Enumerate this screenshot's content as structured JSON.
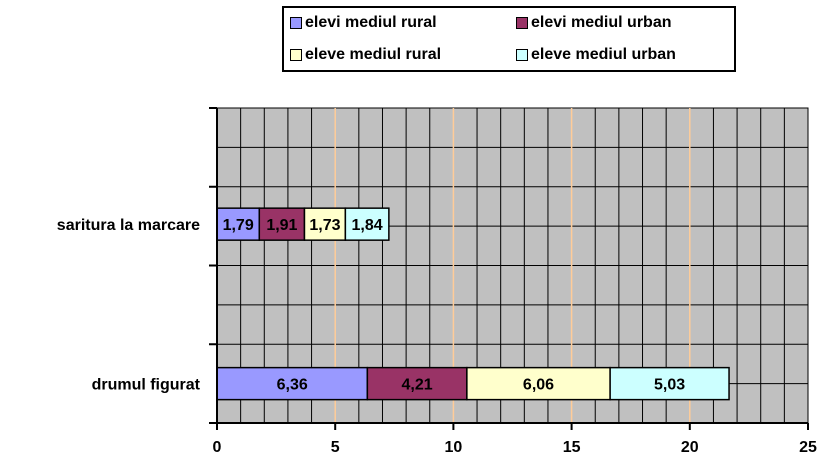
{
  "chart_data": {
    "type": "bar",
    "orientation": "horizontal",
    "stacked": true,
    "categories": [
      "saritura la marcare",
      "drumul figurat"
    ],
    "series": [
      {
        "name": "elevi mediul rural",
        "color": "#9999ff",
        "values": [
          1.79,
          6.36
        ],
        "labels": [
          "1,79",
          "6,36"
        ]
      },
      {
        "name": "elevi mediul urban",
        "color": "#993366",
        "values": [
          1.91,
          4.21
        ],
        "labels": [
          "1,91",
          "4,21"
        ]
      },
      {
        "name": "eleve mediul rural",
        "color": "#ffffcc",
        "values": [
          1.73,
          6.06
        ],
        "labels": [
          "1,73",
          "6,06"
        ]
      },
      {
        "name": "eleve mediul urban",
        "color": "#ccffff",
        "values": [
          1.84,
          5.03
        ],
        "labels": [
          "1,84",
          "5,03"
        ]
      }
    ],
    "xlim": [
      0,
      25
    ],
    "xticks": [
      "0",
      "5",
      "10",
      "15",
      "20",
      "25"
    ],
    "grid": true,
    "legend_position": "top",
    "plot_background": "#c0c0c0"
  }
}
